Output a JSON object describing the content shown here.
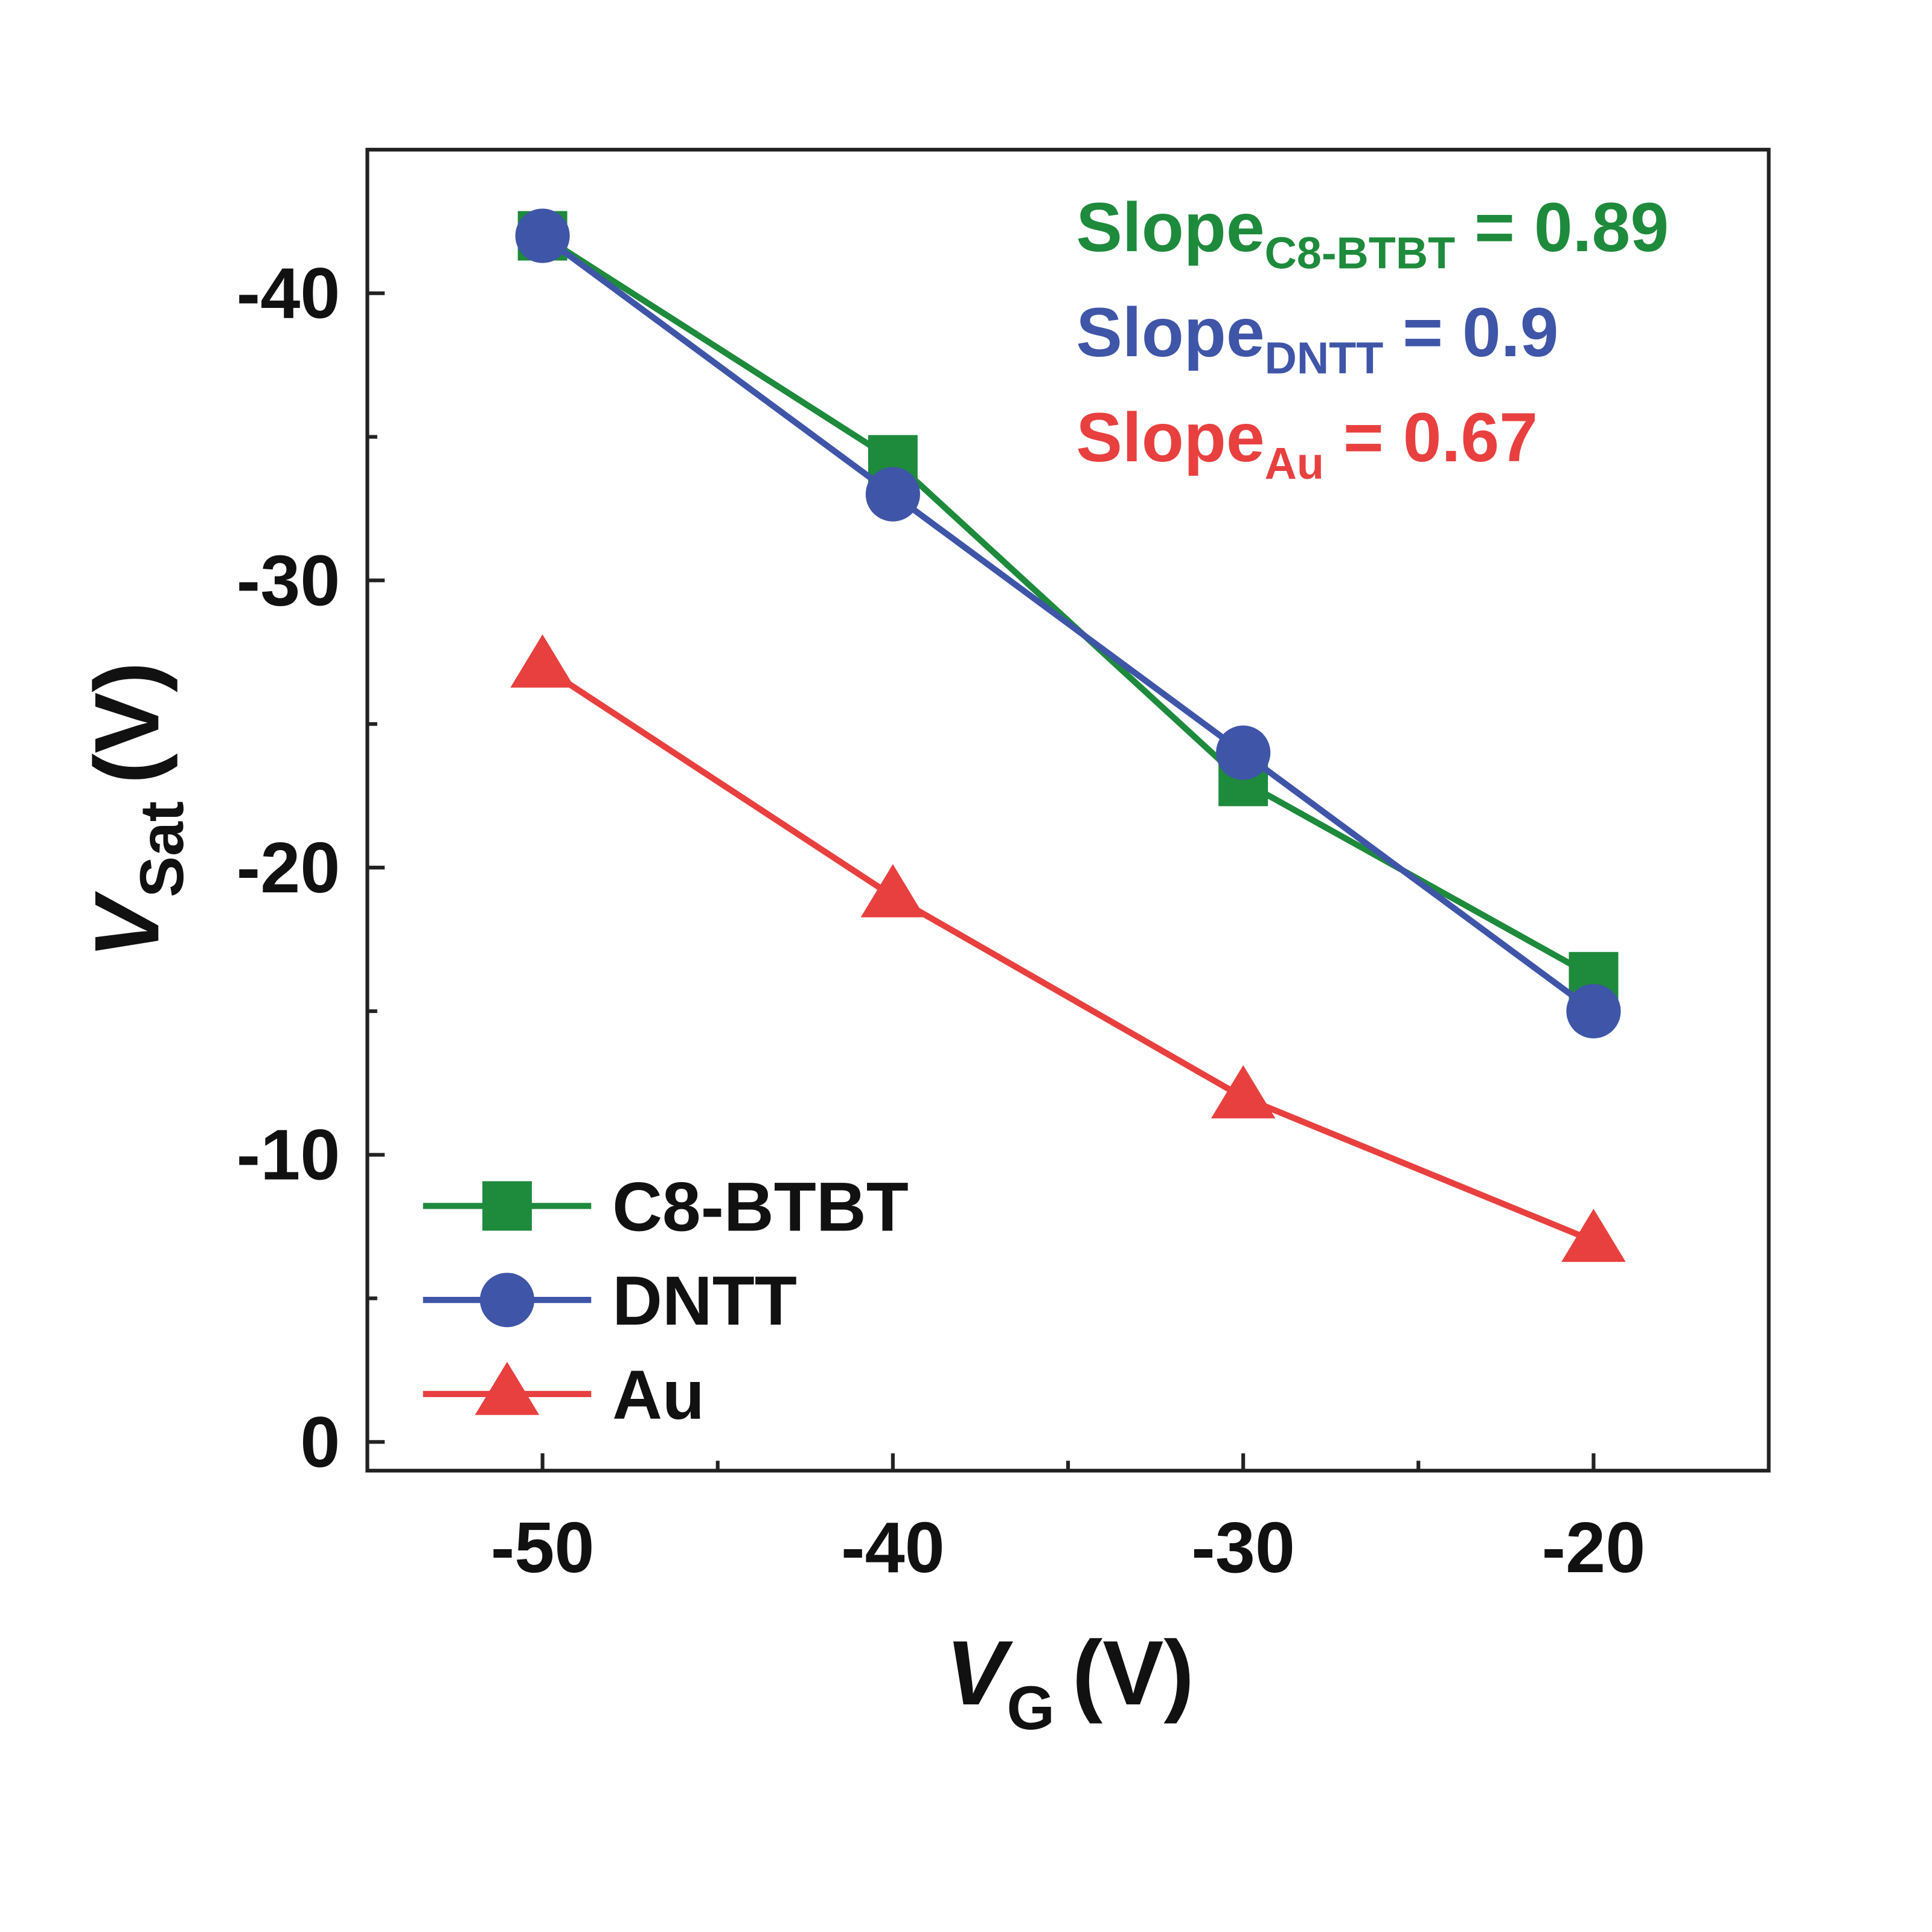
{
  "chart_data": {
    "type": "line",
    "xlabel": {
      "main": "V",
      "sub": "G",
      "unit": "(V)"
    },
    "ylabel": {
      "main": "V",
      "sub": "Sat",
      "unit": "(V)"
    },
    "xlim": [
      -55,
      -15
    ],
    "ylim": [
      1,
      -45
    ],
    "y_axis_inverted": true,
    "grid": false,
    "x_ticks": [
      -50,
      -40,
      -30,
      -20
    ],
    "x_tick_labels": [
      "-50",
      "-40",
      "-30",
      "-20"
    ],
    "x_minor_ticks": [
      -45,
      -35,
      -25
    ],
    "y_ticks": [
      0,
      -10,
      -20,
      -30,
      -40
    ],
    "y_tick_labels": [
      "0",
      "-10",
      "-20",
      "-30",
      "-40"
    ],
    "y_minor_ticks": [
      -5,
      -15,
      -25,
      -35
    ],
    "x": [
      -50,
      -40,
      -30,
      -20
    ],
    "series": [
      {
        "name": "C8-BTBT",
        "marker": "square",
        "color": "#1e8a3c",
        "values": [
          -42,
          -34.2,
          -23,
          -16.2
        ]
      },
      {
        "name": "DNTT",
        "marker": "circle",
        "color": "#3f55a8",
        "values": [
          -42,
          -33,
          -24,
          -15
        ]
      },
      {
        "name": "Au",
        "marker": "triangle",
        "color": "#e8403f",
        "values": [
          -27,
          -19,
          -12,
          -7
        ]
      }
    ],
    "legend_position": "bottom-left",
    "annotations": [
      {
        "label": "Slope",
        "sub": "C8-BTBT",
        "value": "= 0.89",
        "color": "#1e8a3c"
      },
      {
        "label": "Slope",
        "sub": "DNTT",
        "value": "= 0.9",
        "color": "#3f55a8"
      },
      {
        "label": "Slope",
        "sub": "Au",
        "value": "= 0.67",
        "color": "#e8403f"
      }
    ]
  }
}
